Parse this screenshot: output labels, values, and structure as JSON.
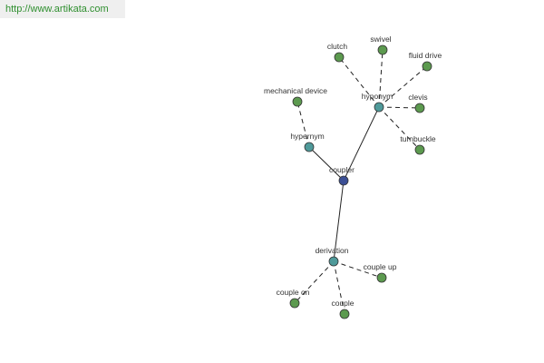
{
  "header": {
    "url": "http://www.artikata.com"
  },
  "nodes": [
    {
      "label": "coupler"
    },
    {
      "label": "hypernym"
    },
    {
      "label": "mechanical device"
    },
    {
      "label": "hyponym"
    },
    {
      "label": "clutch"
    },
    {
      "label": "swivel"
    },
    {
      "label": "fluid drive"
    },
    {
      "label": "clevis"
    },
    {
      "label": "turnbuckle"
    },
    {
      "label": "derivation"
    },
    {
      "label": "couple up"
    },
    {
      "label": "couple on"
    },
    {
      "label": "couple"
    }
  ]
}
